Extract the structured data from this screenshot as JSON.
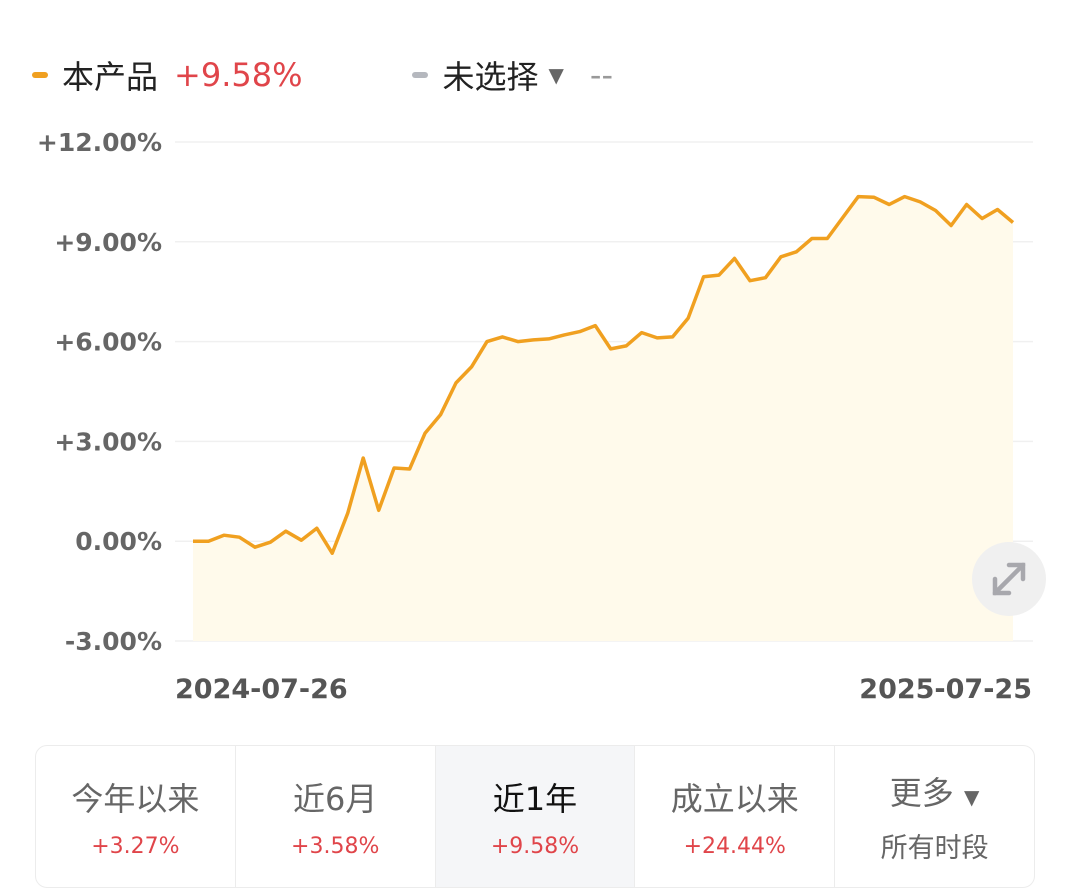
{
  "legend": {
    "product_label": "本产品",
    "product_value": "+9.58%",
    "compare_label": "未选择",
    "compare_value": "--",
    "product_color": "#f0a020",
    "compare_color": "#b5b8be"
  },
  "chart_data": {
    "type": "area",
    "ylim": [
      -3,
      12
    ],
    "yticks": [
      "+12.00%",
      "+9.00%",
      "+6.00%",
      "+3.00%",
      "0.00%",
      "-3.00%"
    ],
    "ytick_values": [
      12,
      9,
      6,
      3,
      0,
      -3
    ],
    "x_start_label": "2024-07-26",
    "x_end_label": "2025-07-25",
    "grid": true,
    "series": [
      {
        "name": "本产品",
        "color": "#f0a020",
        "values": [
          0.0,
          0.0,
          0.18,
          0.12,
          -0.18,
          -0.03,
          0.3,
          0.03,
          0.39,
          -0.36,
          0.84,
          2.5,
          0.93,
          2.2,
          2.17,
          3.25,
          3.8,
          4.76,
          5.24,
          6.0,
          6.14,
          6.0,
          6.05,
          6.08,
          6.2,
          6.3,
          6.48,
          5.78,
          5.87,
          6.27,
          6.11,
          6.14,
          6.7,
          7.95,
          8.0,
          8.5,
          7.83,
          7.92,
          8.55,
          8.7,
          9.1,
          9.1,
          9.73,
          10.36,
          10.34,
          10.12,
          10.36,
          10.2,
          9.94,
          9.49,
          10.12,
          9.7,
          9.97,
          9.58
        ]
      }
    ]
  },
  "expand_icon": "expand-icon",
  "tabs": [
    {
      "label": "今年以来",
      "value": "+3.27%"
    },
    {
      "label": "近6月",
      "value": "+3.58%"
    },
    {
      "label": "近1年",
      "value": "+9.58%",
      "selected": true
    },
    {
      "label": "成立以来",
      "value": "+24.44%"
    },
    {
      "label": "更多",
      "sub": "所有时段"
    }
  ]
}
